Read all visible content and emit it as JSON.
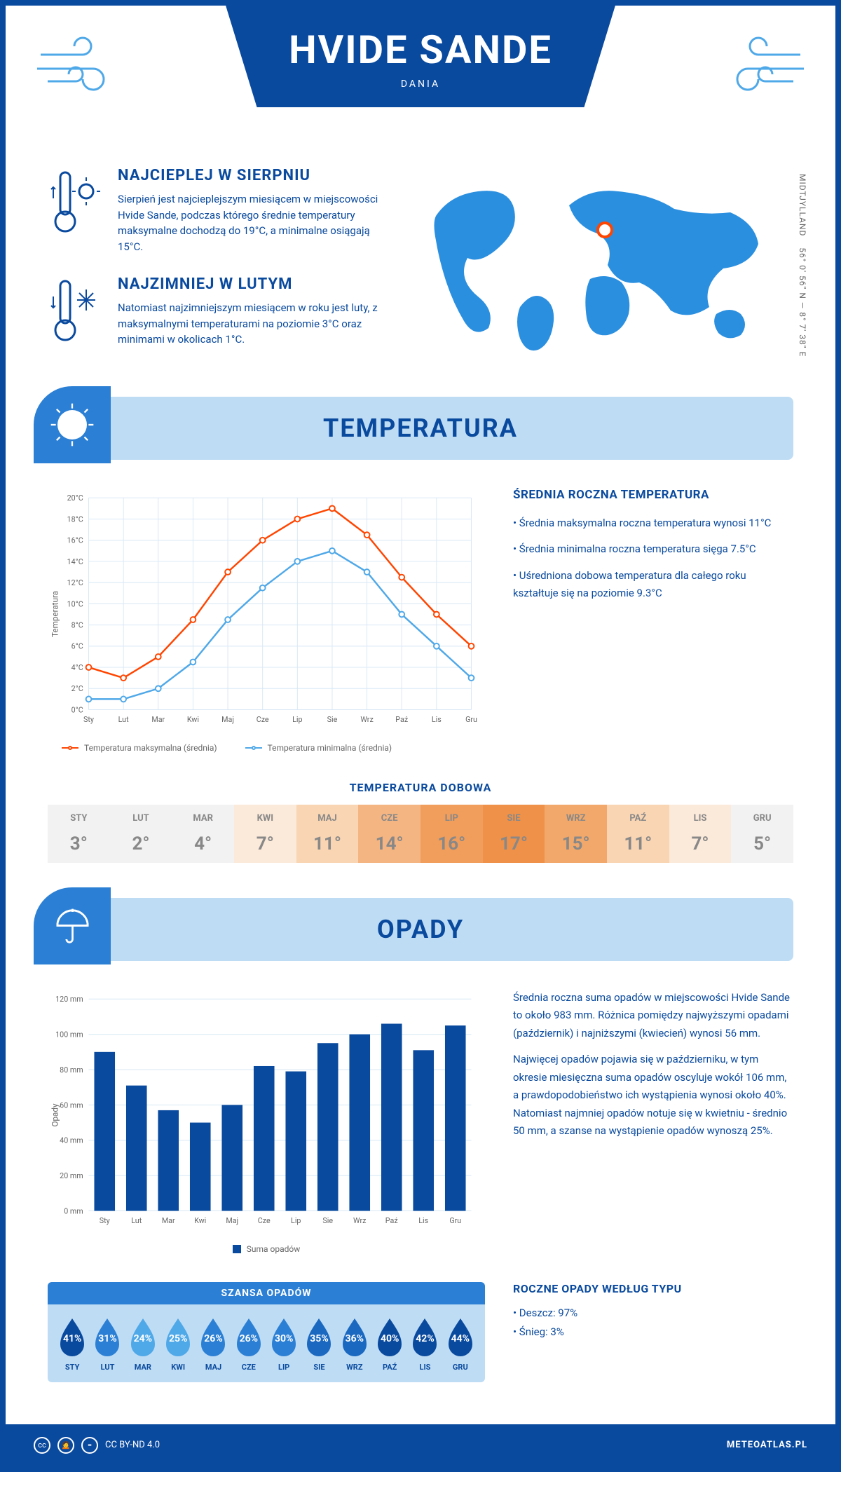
{
  "header": {
    "city": "HVIDE SANDE",
    "country": "DANIA"
  },
  "coords": {
    "region": "MIDTJYLLAND",
    "lat": "56° 0' 56\" N",
    "lon": "8° 7' 38\" E"
  },
  "warmest": {
    "title": "NAJCIEPLEJ W SIERPNIU",
    "text": "Sierpień jest najcieplejszym miesiącem w miejscowości Hvide Sande, podczas którego średnie temperatury maksymalne dochodzą do 19°C, a minimalne osiągają 15°C."
  },
  "coldest": {
    "title": "NAJZIMNIEJ W LUTYM",
    "text": "Natomiast najzimniejszym miesiącem w roku jest luty, z maksymalnymi temperaturami na poziomie 3°C oraz minimami w okolicach 1°C."
  },
  "section_temp": "TEMPERATURA",
  "section_precip": "OPADY",
  "months": [
    "Sty",
    "Lut",
    "Mar",
    "Kwi",
    "Maj",
    "Cze",
    "Lip",
    "Sie",
    "Wrz",
    "Paź",
    "Lis",
    "Gru"
  ],
  "months_upper": [
    "STY",
    "LUT",
    "MAR",
    "KWI",
    "MAJ",
    "CZE",
    "LIP",
    "SIE",
    "WRZ",
    "PAŹ",
    "LIS",
    "GRU"
  ],
  "temp_chart": {
    "type": "line",
    "ylabel": "Temperatura",
    "ylim": [
      0,
      20
    ],
    "ytick_step": 2,
    "grid_color": "#d8e8f5",
    "series": [
      {
        "name": "Temperatura maksymalna (średnia)",
        "color": "#ff4500",
        "values": [
          4,
          3,
          5,
          8.5,
          13,
          16,
          18,
          19,
          16.5,
          12.5,
          9,
          6
        ]
      },
      {
        "name": "Temperatura minimalna (średnia)",
        "color": "#4fa8e8",
        "values": [
          1,
          1,
          2,
          4.5,
          8.5,
          11.5,
          14,
          15,
          13,
          9,
          6,
          3
        ]
      }
    ]
  },
  "temp_side": {
    "title": "ŚREDNIA ROCZNA TEMPERATURA",
    "bullets": [
      "Średnia maksymalna roczna temperatura wynosi 11°C",
      "Średnia minimalna roczna temperatura sięga 7.5°C",
      "Uśredniona dobowa temperatura dla całego roku kształtuje się na poziomie 9.3°C"
    ]
  },
  "daily_temp": {
    "title": "TEMPERATURA DOBOWA",
    "values": [
      "3°",
      "2°",
      "4°",
      "7°",
      "11°",
      "14°",
      "16°",
      "17°",
      "15°",
      "11°",
      "7°",
      "5°"
    ],
    "colors": [
      "#f2f2f2",
      "#f2f2f2",
      "#f2f2f2",
      "#fbe9d9",
      "#f9d5b3",
      "#f5b582",
      "#f19d5c",
      "#ef9148",
      "#f2a86a",
      "#f9d5b3",
      "#fbe9d9",
      "#f2f2f2"
    ]
  },
  "precip_chart": {
    "type": "bar",
    "ylabel": "Opady",
    "ylim": [
      0,
      120
    ],
    "ytick_step": 20,
    "grid_color": "#d8e8f5",
    "bar_color": "#0a4a9e",
    "legend": "Suma opadów",
    "values": [
      90,
      71,
      57,
      50,
      60,
      82,
      79,
      95,
      100,
      106,
      91,
      105
    ]
  },
  "precip_side": {
    "p1": "Średnia roczna suma opadów w miejscowości Hvide Sande to około 983 mm. Różnica pomiędzy najwyższymi opadami (październik) i najniższymi (kwiecień) wynosi 56 mm.",
    "p2": "Najwięcej opadów pojawia się w październiku, w tym okresie miesięczna suma opadów oscyluje wokół 106 mm, a prawdopodobieństwo ich wystąpienia wynosi około 40%. Natomiast najmniej opadów notuje się w kwietniu - średnio 50 mm, a szanse na wystąpienie opadów wynoszą 25%."
  },
  "chance": {
    "title": "SZANSA OPADÓW",
    "values": [
      "41%",
      "31%",
      "24%",
      "25%",
      "26%",
      "26%",
      "30%",
      "35%",
      "36%",
      "40%",
      "42%",
      "44%"
    ],
    "colors": [
      "#0a4a9e",
      "#2b7fd4",
      "#4fa8e8",
      "#4fa8e8",
      "#2b7fd4",
      "#2b7fd4",
      "#2b7fd4",
      "#1a68c0",
      "#1a68c0",
      "#0a4a9e",
      "#0a4a9e",
      "#0a4a9e"
    ]
  },
  "precip_types": {
    "title": "ROCZNE OPADY WEDŁUG TYPU",
    "rain": "• Deszcz: 97%",
    "snow": "• Śnieg: 3%"
  },
  "footer": {
    "license": "CC BY-ND 4.0",
    "site": "METEOATLAS.PL"
  }
}
